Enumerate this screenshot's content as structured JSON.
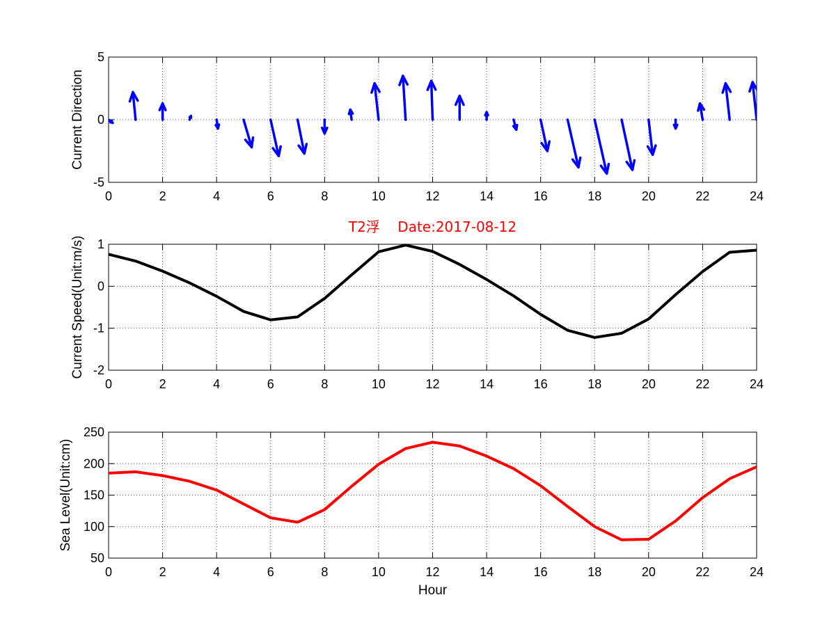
{
  "chart_data": [
    {
      "type": "quiver",
      "ylabel": "Current Direction",
      "xlim": [
        0,
        24
      ],
      "ylim": [
        -5,
        5
      ],
      "xticks": [
        0,
        2,
        4,
        6,
        8,
        10,
        12,
        14,
        16,
        18,
        20,
        22,
        24
      ],
      "yticks": [
        -5,
        0,
        5
      ],
      "color": "#0000ff",
      "vectors": [
        {
          "x": 0,
          "u": 0.15,
          "v": -0.25
        },
        {
          "x": 1,
          "u": -0.1,
          "v": 2.2
        },
        {
          "x": 2,
          "u": 0.0,
          "v": 1.3
        },
        {
          "x": 3,
          "u": 0.05,
          "v": 0.3
        },
        {
          "x": 4,
          "u": 0.05,
          "v": -0.7
        },
        {
          "x": 5,
          "u": 0.3,
          "v": -2.2
        },
        {
          "x": 6,
          "u": 0.3,
          "v": -2.9
        },
        {
          "x": 7,
          "u": 0.25,
          "v": -2.7
        },
        {
          "x": 8,
          "u": 0.0,
          "v": -1.1
        },
        {
          "x": 9,
          "u": -0.05,
          "v": 0.8
        },
        {
          "x": 10,
          "u": -0.15,
          "v": 2.9
        },
        {
          "x": 11,
          "u": -0.1,
          "v": 3.5
        },
        {
          "x": 12,
          "u": -0.05,
          "v": 3.1
        },
        {
          "x": 13,
          "u": 0.0,
          "v": 1.9
        },
        {
          "x": 14,
          "u": 0.0,
          "v": 0.6
        },
        {
          "x": 15,
          "u": 0.1,
          "v": -0.8
        },
        {
          "x": 16,
          "u": 0.25,
          "v": -2.5
        },
        {
          "x": 17,
          "u": 0.4,
          "v": -3.8
        },
        {
          "x": 18,
          "u": 0.45,
          "v": -4.3
        },
        {
          "x": 19,
          "u": 0.4,
          "v": -4.0
        },
        {
          "x": 20,
          "u": 0.15,
          "v": -2.8
        },
        {
          "x": 21,
          "u": 0.0,
          "v": -0.7
        },
        {
          "x": 22,
          "u": -0.1,
          "v": 1.3
        },
        {
          "x": 23,
          "u": -0.15,
          "v": 2.9
        },
        {
          "x": 24,
          "u": -0.15,
          "v": 3.0
        }
      ]
    },
    {
      "type": "line",
      "title": "T2浮    Date:2017-08-12",
      "ylabel": "Current Speed(Unit:m/s)",
      "xlim": [
        0,
        24
      ],
      "ylim": [
        -2,
        1
      ],
      "xticks": [
        0,
        2,
        4,
        6,
        8,
        10,
        12,
        14,
        16,
        18,
        20,
        22,
        24
      ],
      "yticks": [
        -2,
        -1,
        0,
        1
      ],
      "color": "#000000",
      "x": [
        0,
        1,
        2,
        3,
        4,
        5,
        6,
        7,
        8,
        9,
        10,
        11,
        12,
        13,
        14,
        15,
        16,
        17,
        18,
        19,
        20,
        21,
        22,
        23,
        24
      ],
      "y": [
        0.76,
        0.6,
        0.36,
        0.08,
        -0.24,
        -0.6,
        -0.8,
        -0.73,
        -0.29,
        0.27,
        0.82,
        0.98,
        0.83,
        0.52,
        0.16,
        -0.23,
        -0.67,
        -1.05,
        -1.22,
        -1.12,
        -0.78,
        -0.2,
        0.35,
        0.81,
        0.86
      ]
    },
    {
      "type": "line",
      "xlabel": "Hour",
      "ylabel": "Sea Level(Unit:cm)",
      "xlim": [
        0,
        24
      ],
      "ylim": [
        50,
        250
      ],
      "xticks": [
        0,
        2,
        4,
        6,
        8,
        10,
        12,
        14,
        16,
        18,
        20,
        22,
        24
      ],
      "yticks": [
        50,
        100,
        150,
        200,
        250
      ],
      "color": "#ff0000",
      "x": [
        0,
        1,
        2,
        3,
        4,
        5,
        6,
        7,
        8,
        9,
        10,
        11,
        12,
        13,
        14,
        15,
        16,
        17,
        18,
        19,
        20,
        21,
        22,
        23,
        24
      ],
      "y": [
        185,
        187,
        181,
        172,
        158,
        136,
        114,
        107,
        127,
        164,
        199,
        224,
        234,
        228,
        212,
        192,
        165,
        132,
        100,
        79,
        80,
        109,
        146,
        176,
        195
      ]
    }
  ]
}
